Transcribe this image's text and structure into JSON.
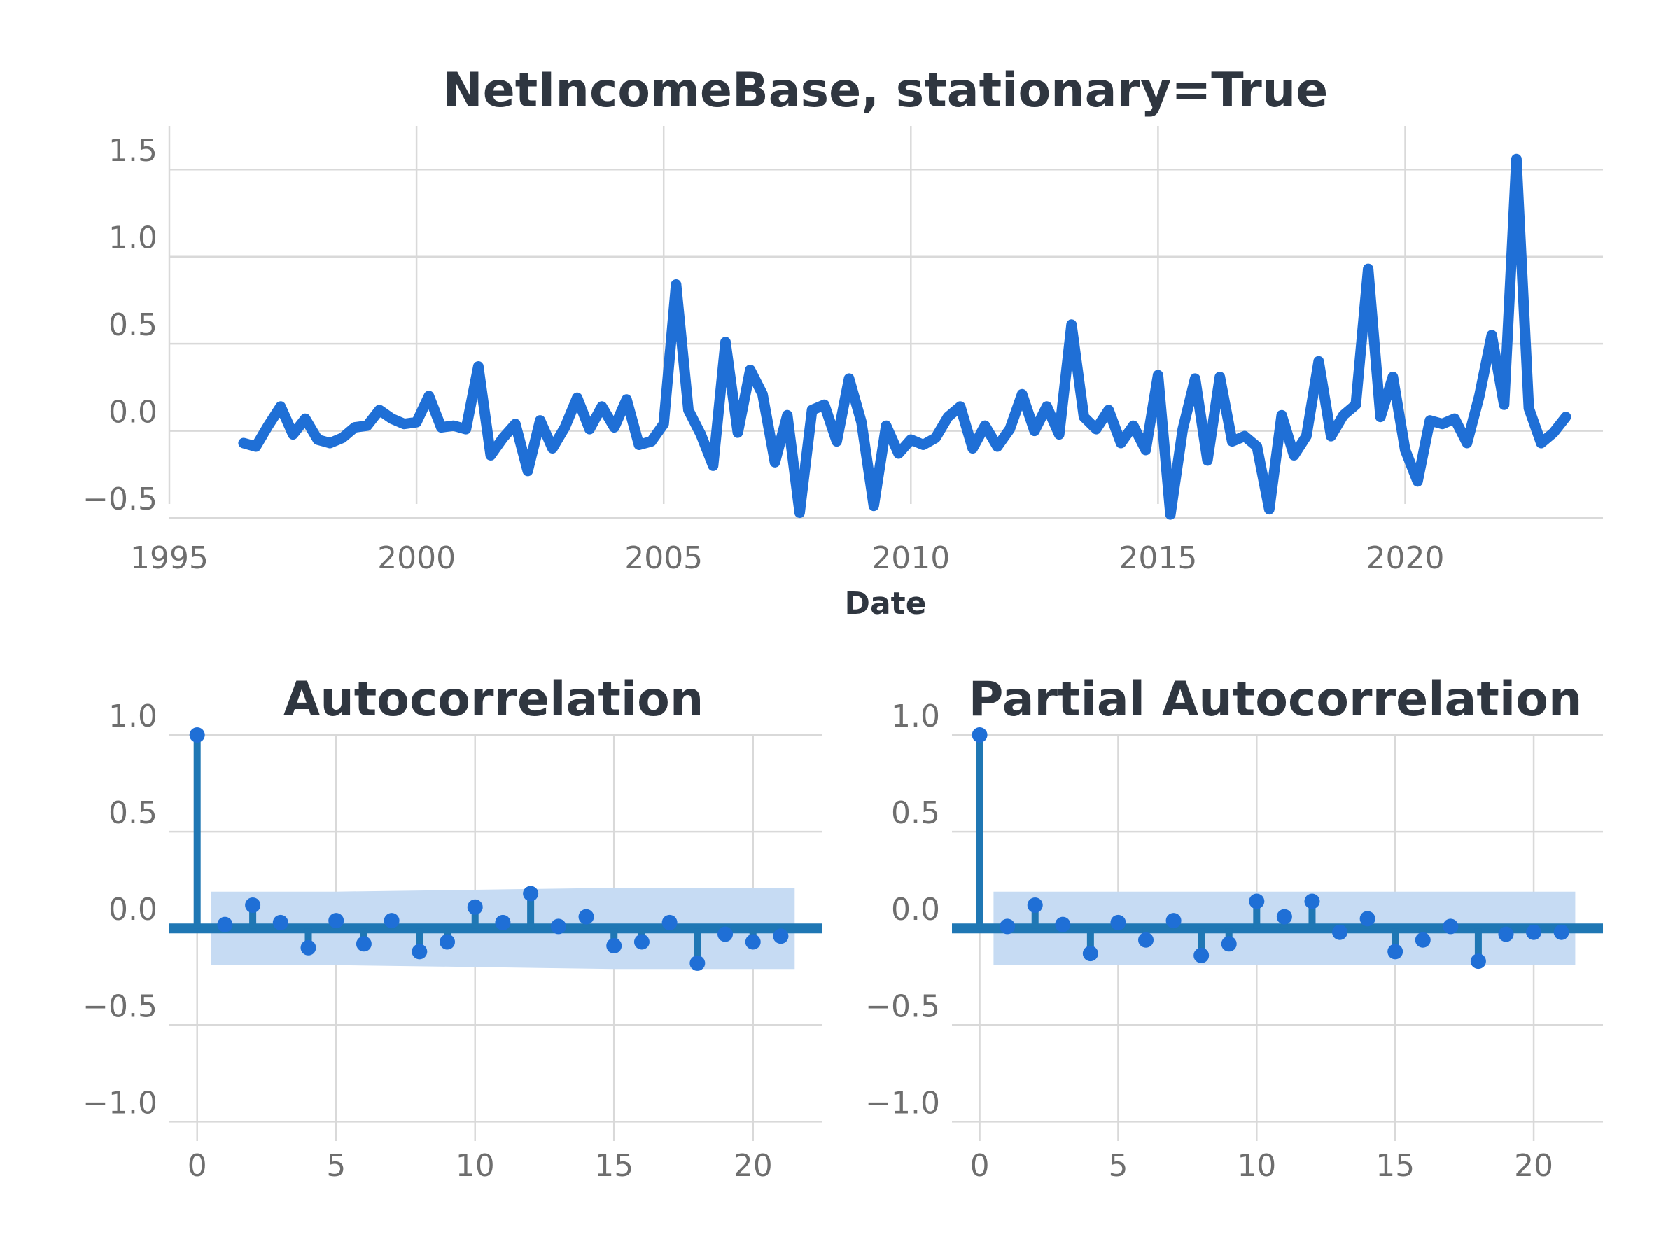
{
  "colors": {
    "line": "#1f6fd6",
    "stem": "#1f77b4",
    "band": "#c6dbf3",
    "grid": "#d9d9d9",
    "tick": "#6e6e6e",
    "title": "#2f3640"
  },
  "chart_data": [
    {
      "type": "line",
      "title": "NetIncomeBase, stationary=True",
      "xlabel": "Date",
      "ylabel": "",
      "xlim": [
        1995,
        2024
      ],
      "ylim": [
        -0.58,
        1.75
      ],
      "x_ticks": [
        1995,
        2000,
        2005,
        2010,
        2015,
        2020
      ],
      "y_ticks": [
        -0.5,
        0.0,
        0.5,
        1.0,
        1.5
      ],
      "y_tick_labels": [
        "−0.5",
        "0.0",
        "0.5",
        "1.0",
        "1.5"
      ],
      "grid": true,
      "x": [
        1996.5,
        1996.75,
        1997.0,
        1997.25,
        1997.5,
        1997.75,
        1998.0,
        1998.25,
        1998.5,
        1998.75,
        1999.0,
        1999.25,
        1999.5,
        1999.75,
        2000.0,
        2000.25,
        2000.5,
        2000.75,
        2001.0,
        2001.25,
        2001.5,
        2001.75,
        2002.0,
        2002.25,
        2002.5,
        2002.75,
        2003.0,
        2003.25,
        2003.5,
        2003.75,
        2004.0,
        2004.25,
        2004.5,
        2004.75,
        2005.0,
        2005.25,
        2005.5,
        2005.75,
        2006.0,
        2006.25,
        2006.5,
        2006.75,
        2007.0,
        2007.25,
        2007.5,
        2007.75,
        2008.0,
        2008.25,
        2008.5,
        2008.75,
        2009.0,
        2009.25,
        2009.5,
        2009.75,
        2010.0,
        2010.25,
        2010.5,
        2010.75,
        2011.0,
        2011.25,
        2011.5,
        2011.75,
        2012.0,
        2012.25,
        2012.5,
        2012.75,
        2013.0,
        2013.25,
        2013.5,
        2013.75,
        2014.0,
        2014.25,
        2014.5,
        2014.75,
        2015.0,
        2015.25,
        2015.5,
        2015.75,
        2016.0,
        2016.25,
        2016.5,
        2016.75,
        2017.0,
        2017.25,
        2017.5,
        2017.75,
        2018.0,
        2018.25,
        2018.5,
        2018.75,
        2019.0,
        2019.25,
        2019.5,
        2019.75,
        2020.0,
        2020.25,
        2020.5,
        2020.75,
        2021.0,
        2021.25,
        2021.5,
        2021.75,
        2022.0,
        2022.25,
        2022.5,
        2022.75,
        2023.0,
        2023.25
      ],
      "y": [
        -0.07,
        -0.09,
        0.03,
        0.14,
        -0.02,
        0.07,
        -0.05,
        -0.07,
        -0.04,
        0.02,
        0.03,
        0.12,
        0.07,
        0.04,
        0.05,
        0.2,
        0.02,
        0.03,
        0.01,
        0.37,
        -0.14,
        -0.04,
        0.04,
        -0.23,
        0.06,
        -0.1,
        0.02,
        0.19,
        0.01,
        0.14,
        0.02,
        0.18,
        -0.08,
        -0.06,
        0.04,
        0.84,
        0.12,
        -0.02,
        -0.2,
        0.51,
        -0.01,
        0.35,
        0.21,
        -0.18,
        0.09,
        -0.47,
        0.12,
        0.15,
        -0.06,
        0.3,
        0.05,
        -0.43,
        0.03,
        -0.13,
        -0.05,
        -0.08,
        -0.04,
        0.08,
        0.14,
        -0.1,
        0.03,
        -0.09,
        0.01,
        0.21,
        0.0,
        0.14,
        -0.02,
        0.61,
        0.08,
        0.01,
        0.12,
        -0.07,
        0.03,
        -0.11,
        0.32,
        -0.48,
        0.01,
        0.3,
        -0.17,
        0.31,
        -0.06,
        -0.03,
        -0.09,
        -0.45,
        0.09,
        -0.14,
        -0.03,
        0.4,
        -0.03,
        0.09,
        0.15,
        0.93,
        0.08,
        0.31,
        -0.11,
        -0.29,
        0.06,
        0.04,
        0.07,
        -0.07,
        0.2,
        0.55,
        0.15,
        1.56,
        0.13,
        -0.07,
        -0.01,
        0.08
      ]
    },
    {
      "type": "bar",
      "title": "Autocorrelation",
      "xlabel": "",
      "ylabel": "",
      "xlim": [
        -1,
        22.5
      ],
      "ylim": [
        -1.1,
        1.0
      ],
      "x_ticks": [
        0,
        5,
        10,
        15,
        20
      ],
      "y_ticks": [
        -1.0,
        -0.5,
        0.0,
        0.5,
        1.0
      ],
      "y_tick_labels": [
        "−1.0",
        "−0.5",
        "0.0",
        "0.5",
        "1.0"
      ],
      "grid": true,
      "lags": [
        0,
        1,
        2,
        3,
        4,
        5,
        6,
        7,
        8,
        9,
        10,
        11,
        12,
        13,
        14,
        15,
        16,
        17,
        18,
        19,
        20,
        21
      ],
      "values": [
        1.0,
        0.02,
        0.12,
        0.03,
        -0.1,
        0.04,
        -0.08,
        0.04,
        -0.12,
        -0.07,
        0.11,
        0.03,
        0.18,
        0.01,
        0.06,
        -0.09,
        -0.07,
        0.03,
        -0.18,
        -0.03,
        -0.07,
        -0.04
      ],
      "confidence_band": {
        "x": [
          0.5,
          5,
          10,
          15,
          18,
          21.5
        ],
        "upper": [
          0.19,
          0.19,
          0.2,
          0.21,
          0.21,
          0.21
        ],
        "lower": [
          -0.19,
          -0.19,
          -0.2,
          -0.21,
          -0.21,
          -0.21
        ]
      }
    },
    {
      "type": "bar",
      "title": "Partial Autocorrelation",
      "xlabel": "",
      "ylabel": "",
      "xlim": [
        -1,
        22.5
      ],
      "ylim": [
        -1.1,
        1.0
      ],
      "x_ticks": [
        0,
        5,
        10,
        15,
        20
      ],
      "y_ticks": [
        -1.0,
        -0.5,
        0.0,
        0.5,
        1.0
      ],
      "y_tick_labels": [
        "−1.0",
        "−0.5",
        "0.0",
        "0.5",
        "1.0"
      ],
      "grid": true,
      "lags": [
        0,
        1,
        2,
        3,
        4,
        5,
        6,
        7,
        8,
        9,
        10,
        11,
        12,
        13,
        14,
        15,
        16,
        17,
        18,
        19,
        20,
        21
      ],
      "values": [
        1.0,
        0.01,
        0.12,
        0.02,
        -0.13,
        0.03,
        -0.06,
        0.04,
        -0.14,
        -0.08,
        0.14,
        0.06,
        0.14,
        -0.02,
        0.05,
        -0.12,
        -0.06,
        0.01,
        -0.17,
        -0.03,
        -0.02,
        -0.02
      ],
      "confidence_band": {
        "x": [
          0.5,
          21.5
        ],
        "upper": [
          0.19,
          0.19
        ],
        "lower": [
          -0.19,
          -0.19
        ]
      }
    }
  ]
}
